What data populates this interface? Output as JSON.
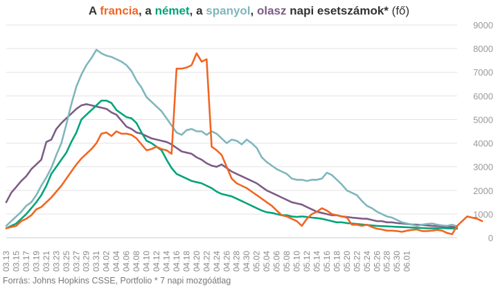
{
  "title": {
    "parts": [
      {
        "text": "A ",
        "color": "#333333"
      },
      {
        "text": "francia",
        "color": "#f26522"
      },
      {
        "text": ", a ",
        "color": "#333333"
      },
      {
        "text": "német",
        "color": "#00a37a"
      },
      {
        "text": ", a ",
        "color": "#333333"
      },
      {
        "text": "spanyol",
        "color": "#7fb6bc"
      },
      {
        "text": ", ",
        "color": "#333333"
      },
      {
        "text": "olasz",
        "color": "#7d5b86"
      },
      {
        "text": " napi esetszámok*",
        "color": "#333333"
      }
    ],
    "suffix": "(fő)"
  },
  "source": "Forrás: Johns Hopkins CSSE, Portfolio  * 7 napi mozgóátlag",
  "chart_data": {
    "type": "line",
    "ylim": [
      0,
      9000
    ],
    "yticks": [
      "0",
      "1000",
      "2000",
      "3000",
      "4000",
      "5000",
      "6000",
      "7000",
      "8000",
      "9000"
    ],
    "y_axis_position": "right",
    "grid": "horizontal",
    "x_tick_labels": [
      "03.13",
      "03.15",
      "03.17",
      "03.19",
      "03.21",
      "03.23",
      "03.25",
      "03.27",
      "03.29",
      "03.31",
      "04.02",
      "04.04",
      "04.06",
      "04.08",
      "04.10",
      "04.12",
      "04.14",
      "04.16",
      "04.18",
      "04.20",
      "04.22",
      "04.24",
      "04.26",
      "04.28",
      "04.30",
      "05.02",
      "05.04",
      "05.06",
      "05.08",
      "05.10",
      "05.12",
      "05.14",
      "05.16",
      "05.18",
      "05.20",
      "05.22",
      "05.24",
      "05.26",
      "05.28",
      "05.30",
      "06.01"
    ],
    "x_start": "03.13",
    "series": [
      {
        "name": "olasz",
        "color": "#7d5b86",
        "values": [
          1500,
          1900,
          2150,
          2400,
          2600,
          2900,
          3100,
          3300,
          4050,
          4150,
          4600,
          4850,
          5050,
          5250,
          5450,
          5600,
          5650,
          5600,
          5550,
          5500,
          5450,
          5300,
          5200,
          4950,
          4700,
          4600,
          4450,
          4400,
          4300,
          4200,
          4150,
          4100,
          4050,
          3950,
          3800,
          3650,
          3600,
          3550,
          3400,
          3300,
          3150,
          3050,
          3000,
          3100,
          2950,
          2800,
          2700,
          2600,
          2500,
          2400,
          2300,
          2150,
          2000,
          1900,
          1800,
          1700,
          1600,
          1500,
          1450,
          1400,
          1300,
          1200,
          1100,
          1050,
          1000,
          950,
          950,
          900,
          880,
          850,
          830,
          810,
          800,
          750,
          700,
          700,
          650,
          650,
          620,
          600,
          580,
          560,
          550,
          540,
          520,
          500,
          490,
          480,
          470,
          460,
          450
        ]
      },
      {
        "name": "német",
        "color": "#00a37a",
        "values": [
          400,
          500,
          600,
          800,
          1000,
          1250,
          1500,
          1800,
          2200,
          2700,
          3000,
          3300,
          3600,
          4050,
          4450,
          5000,
          5200,
          5400,
          5600,
          5800,
          5800,
          5700,
          5400,
          5250,
          5100,
          5050,
          4850,
          4450,
          4100,
          4000,
          3850,
          3700,
          3300,
          2950,
          2700,
          2600,
          2500,
          2400,
          2350,
          2300,
          2200,
          2100,
          1950,
          1850,
          1800,
          1750,
          1650,
          1550,
          1450,
          1350,
          1250,
          1150,
          1080,
          1050,
          1000,
          950,
          950,
          900,
          880,
          900,
          880,
          850,
          830,
          800,
          750,
          700,
          650,
          650,
          620,
          600,
          580,
          560,
          540,
          520,
          500,
          490,
          480,
          470,
          460,
          450,
          440,
          430,
          420,
          410,
          400,
          400,
          400,
          410,
          400,
          390,
          380
        ]
      },
      {
        "name": "spanyol",
        "color": "#7fb6bc",
        "values": [
          500,
          700,
          900,
          1100,
          1350,
          1500,
          1800,
          2200,
          2550,
          2950,
          3500,
          4000,
          4800,
          5650,
          6400,
          6900,
          7300,
          7600,
          7950,
          7800,
          7700,
          7650,
          7550,
          7450,
          7300,
          7050,
          6650,
          6350,
          5950,
          5750,
          5550,
          5350,
          5050,
          4750,
          4450,
          4350,
          4550,
          4600,
          4500,
          4500,
          4350,
          4500,
          4400,
          4200,
          4000,
          4150,
          4100,
          3950,
          4150,
          4000,
          3800,
          3400,
          3200,
          3050,
          2900,
          2800,
          2700,
          2500,
          2450,
          2450,
          2400,
          2450,
          2450,
          2500,
          2750,
          2650,
          2450,
          2250,
          2000,
          1900,
          1800,
          1550,
          1350,
          1250,
          1100,
          1000,
          900,
          850,
          750,
          650,
          600,
          550,
          500,
          550,
          580,
          600,
          550,
          520,
          500,
          550,
          480
        ]
      },
      {
        "name": "francia",
        "color": "#f26522",
        "values": [
          400,
          450,
          500,
          700,
          800,
          950,
          1200,
          1300,
          1500,
          1700,
          1950,
          2200,
          2500,
          2800,
          3100,
          3350,
          3550,
          3750,
          4000,
          4400,
          4450,
          4300,
          4500,
          4400,
          4400,
          4350,
          4200,
          3950,
          3700,
          3750,
          3850,
          3750,
          3700,
          3550,
          7150,
          7150,
          7200,
          7300,
          7800,
          7450,
          7550,
          3850,
          3700,
          3500,
          3000,
          2500,
          2300,
          2200,
          2100,
          1950,
          1800,
          1650,
          1500,
          1350,
          1150,
          950,
          900,
          800,
          700,
          500,
          800,
          1000,
          1100,
          1250,
          1150,
          1000,
          950,
          900,
          850,
          550,
          550,
          500,
          550,
          450,
          380,
          350,
          300,
          300,
          280,
          250,
          300,
          330,
          350,
          280,
          280,
          300,
          330,
          300,
          200,
          150,
          500,
          700,
          900,
          850,
          800,
          700
        ]
      }
    ]
  }
}
